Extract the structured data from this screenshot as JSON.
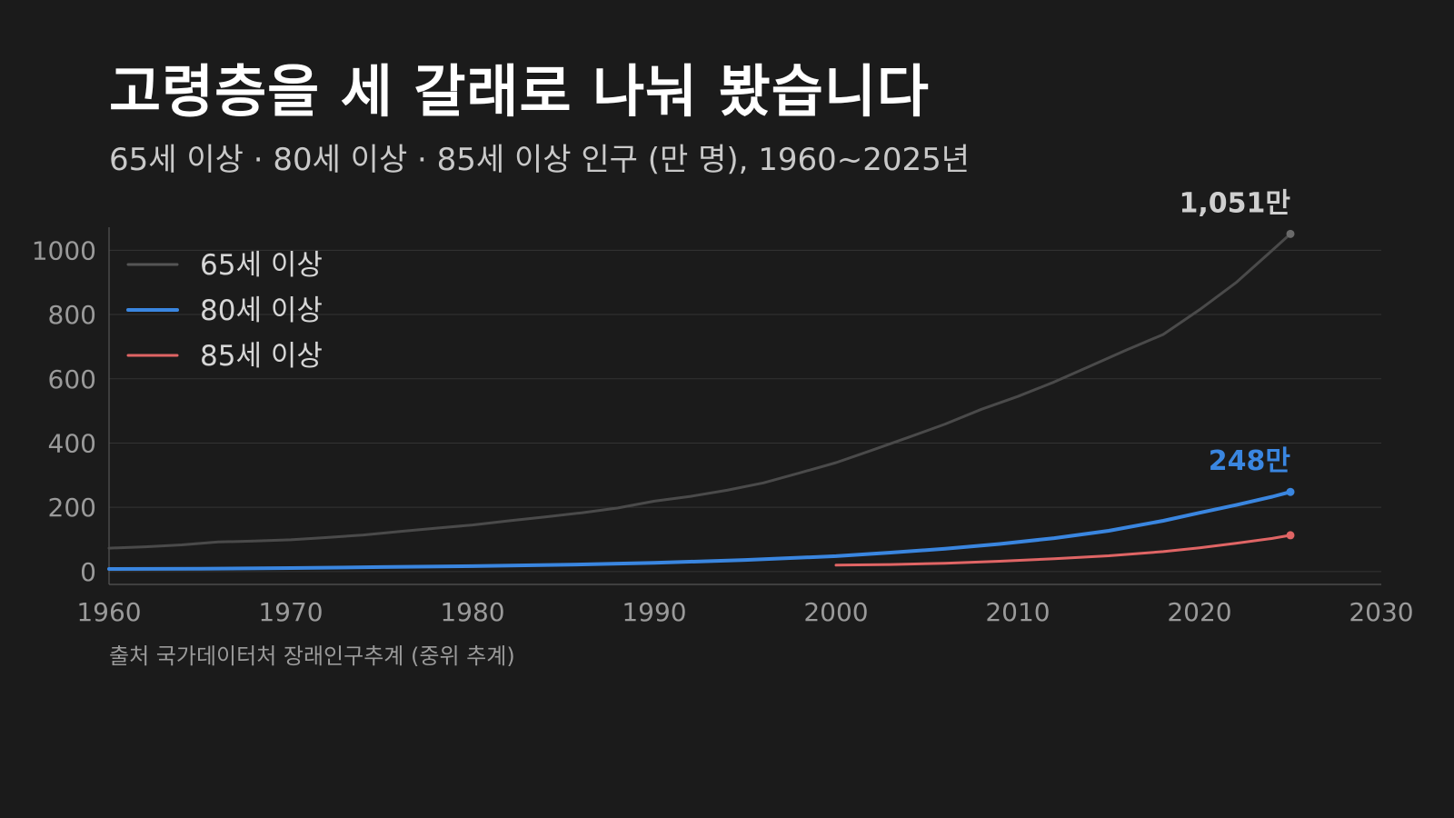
{
  "header": {
    "title": "고령층을 세 갈래로 나눠 봤습니다",
    "subtitle": "65세 이상 · 80세 이상 · 85세 이상 인구 (만 명), 1960~2025년"
  },
  "footer": {
    "source": "출처 국가데이터처 장래인구추계 (중위 추계)"
  },
  "colors": {
    "background": "#1b1b1b",
    "grid": "#333333",
    "axis": "#555555",
    "tick_text": "#9a9a9a"
  },
  "chart_data": {
    "type": "line",
    "xlim": [
      1960,
      2030
    ],
    "ylim": [
      -40,
      1100
    ],
    "xticks": [
      1960,
      1970,
      1980,
      1990,
      2000,
      2010,
      2020,
      2030
    ],
    "yticks": [
      0,
      200,
      400,
      600,
      800,
      1000
    ],
    "grid": true,
    "legend_position": "top-left",
    "series": [
      {
        "name": "65세 이상",
        "color": "#4a4a4a",
        "end_label": "1,051만",
        "end_label_color": "#cfcfcf",
        "x": [
          1960,
          1962,
          1964,
          1966,
          1968,
          1970,
          1972,
          1974,
          1976,
          1978,
          1980,
          1982,
          1984,
          1986,
          1988,
          1990,
          1992,
          1994,
          1996,
          1998,
          2000,
          2002,
          2004,
          2006,
          2008,
          2010,
          2012,
          2014,
          2016,
          2018,
          2020,
          2022,
          2024,
          2025
        ],
        "y": [
          73,
          77,
          83,
          92,
          95,
          99,
          106,
          114,
          125,
          135,
          145,
          158,
          170,
          183,
          198,
          219,
          234,
          253,
          276,
          307,
          339,
          378,
          418,
          459,
          505,
          545,
          590,
          640,
          690,
          738,
          815,
          899,
          1000,
          1051
        ]
      },
      {
        "name": "80세 이상",
        "color": "#3a86e0",
        "end_label": "248만",
        "end_label_color": "#3a86e0",
        "x": [
          1960,
          1965,
          1970,
          1975,
          1980,
          1985,
          1990,
          1995,
          2000,
          2003,
          2006,
          2009,
          2012,
          2015,
          2018,
          2020,
          2022,
          2024,
          2025
        ],
        "y": [
          8,
          9,
          11,
          14,
          17,
          21,
          27,
          36,
          48,
          59,
          71,
          86,
          104,
          127,
          158,
          183,
          207,
          233,
          248
        ]
      },
      {
        "name": "85세 이상",
        "color": "#e06565",
        "end_label": "",
        "end_label_color": "#e06565",
        "x": [
          2000,
          2003,
          2006,
          2009,
          2012,
          2015,
          2018,
          2020,
          2022,
          2024,
          2025
        ],
        "y": [
          20,
          22,
          26,
          32,
          40,
          49,
          62,
          74,
          88,
          103,
          113
        ]
      }
    ]
  }
}
